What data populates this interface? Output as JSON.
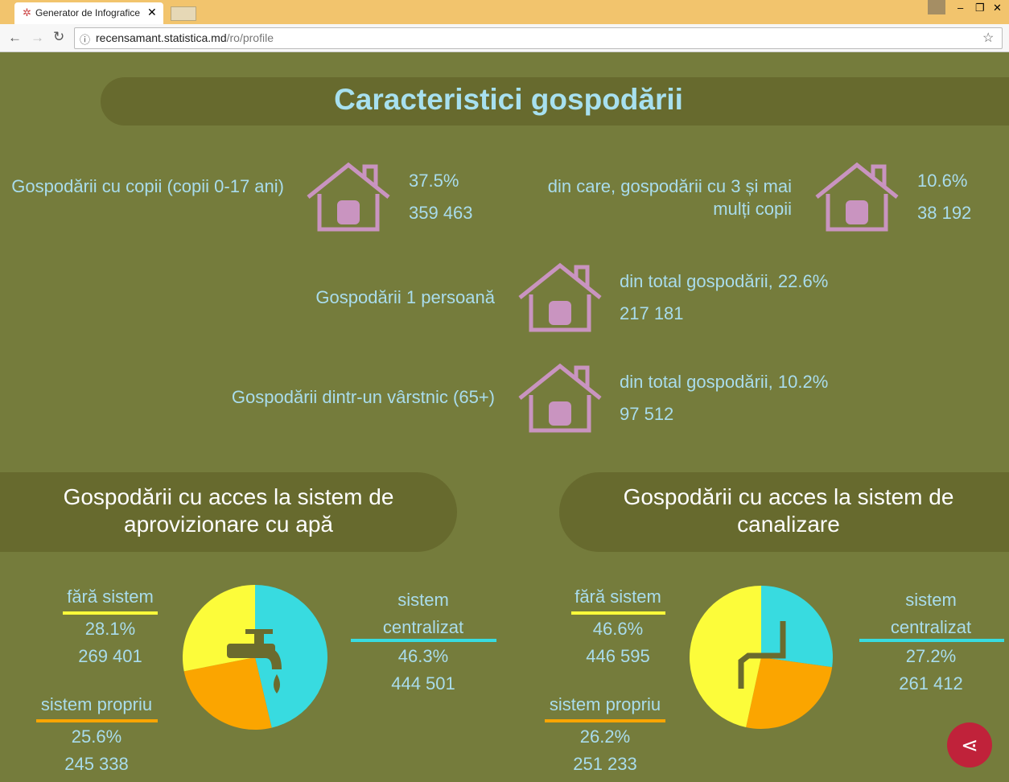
{
  "browser": {
    "tab_title": "Generator de Infografice",
    "url_host": "recensamant.statistica.md",
    "url_path": "/ro/profile"
  },
  "title": "Caracteristici gospodării",
  "households": [
    {
      "label": "Gospodării cu copii (copii 0-17 ani)",
      "share": "37.5%",
      "count": "359 463"
    },
    {
      "label": "din care, gospodării cu 3 și mai mulți copii",
      "share": "10.6%",
      "count": "38 192"
    },
    {
      "label": "Gospodării 1 persoană",
      "share": "din total gospodării, 22.6%",
      "count": "217 181"
    },
    {
      "label": "Gospodării dintr-un vârstnic (65+)",
      "share": "din total gospodării, 10.2%",
      "count": "97 512"
    }
  ],
  "sections": [
    {
      "title": "Gospodării cu acces la sistem de aprovizionare cu apă",
      "slices": [
        {
          "name": "fără sistem",
          "value": 28.1,
          "label": "28.1%",
          "count": "269 401",
          "color": "#fcfc3a"
        },
        {
          "name": "sistem propriu",
          "value": 25.6,
          "label": "25.6%",
          "count": "245 338",
          "color": "#fba500"
        },
        {
          "name": "sistem centralizat",
          "value": 46.3,
          "label": "46.3%",
          "count": "444 501",
          "color": "#38dbe0"
        }
      ]
    },
    {
      "title": "Gospodării cu acces la sistem de canalizare",
      "slices": [
        {
          "name": "fără sistem",
          "value": 46.6,
          "label": "46.6%",
          "count": "446 595",
          "color": "#fcfc3a"
        },
        {
          "name": "sistem propriu",
          "value": 26.2,
          "label": "26.2%",
          "count": "251 233",
          "color": "#fba500"
        },
        {
          "name": "sistem centralizat",
          "value": 27.2,
          "label": "27.2%",
          "count": "261 412",
          "color": "#38dbe0"
        }
      ]
    }
  ]
}
